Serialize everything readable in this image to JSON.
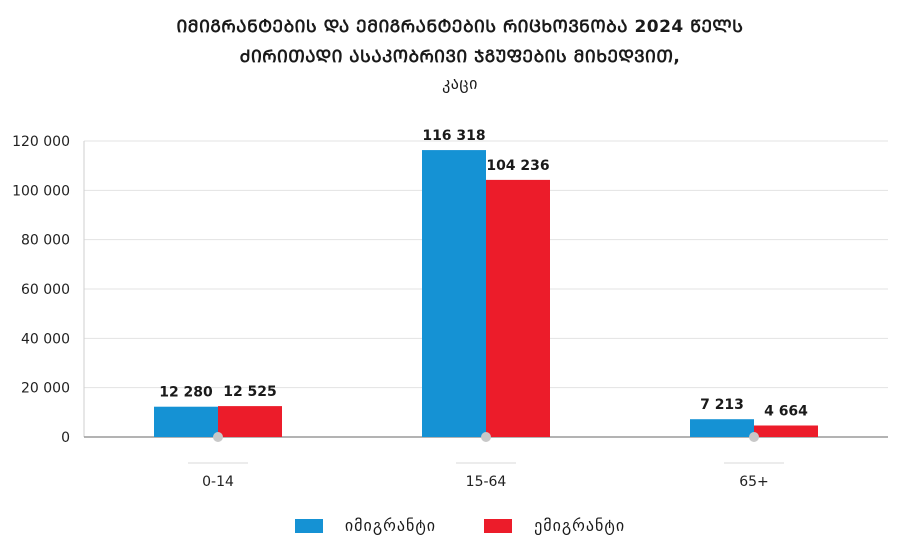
{
  "chart_data": {
    "type": "bar",
    "title_line1": "ᲘᲛᲘᲒᲠᲐᲜᲢᲔᲑᲘᲡ ᲓᲐ ᲔᲛᲘᲒᲠᲐᲜᲢᲔᲑᲘᲡ ᲠᲘᲪᲮᲝᲕᲜᲝᲑᲐ 2024 ᲬᲔᲚᲡ",
    "title_line2": "ᲫᲘᲠᲘᲗᲐᲓᲘ ᲐᲡᲐᲙᲝᲑᲠᲘᲕᲘ ᲯᲒᲣᲤᲔᲑᲘᲡ ᲛᲘᲮᲔᲓᲕᲘᲗ,",
    "unit": "კაცი",
    "categories": [
      "0-14",
      "15-64",
      "65+"
    ],
    "series": [
      {
        "name": "იმიგრანტი",
        "color": "#1592d4",
        "values": [
          12280,
          116318,
          7213
        ],
        "labels": [
          "12 280",
          "116 318",
          "7 213"
        ]
      },
      {
        "name": "ემიგრანტი",
        "color": "#ec1c2a",
        "values": [
          12525,
          104236,
          4664
        ],
        "labels": [
          "12 525",
          "104 236",
          "4 664"
        ]
      }
    ],
    "ylim": [
      0,
      120000
    ],
    "yticks": [
      0,
      20000,
      40000,
      60000,
      80000,
      100000,
      120000
    ],
    "ytick_labels": [
      "0",
      "20 000",
      "40 000",
      "60 000",
      "80 000",
      "100 000",
      "120 000"
    ],
    "grid": true,
    "legend_position": "bottom"
  }
}
